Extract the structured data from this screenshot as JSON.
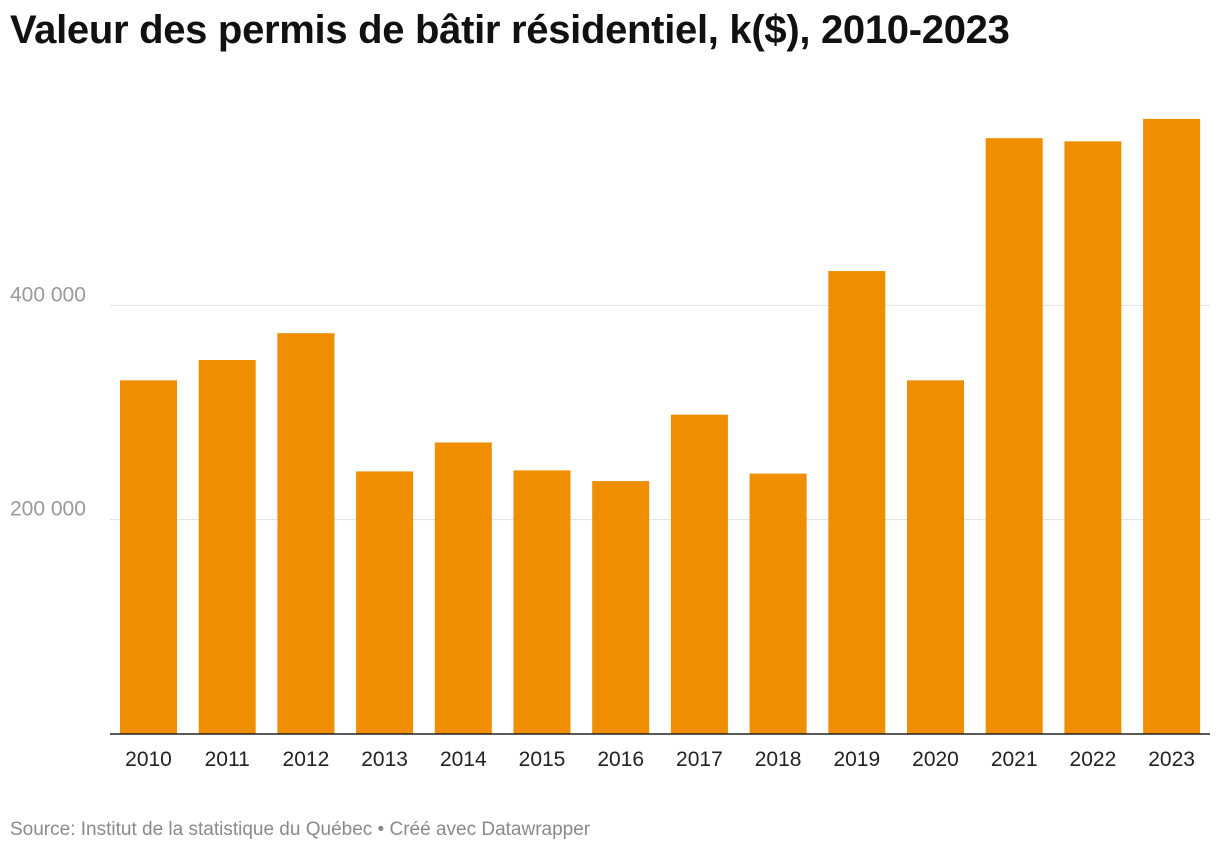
{
  "chart_data": {
    "type": "bar",
    "title": "Valeur des permis de bâtir résidentiel, k($), 2010-2023",
    "categories": [
      "2010",
      "2011",
      "2012",
      "2013",
      "2014",
      "2015",
      "2016",
      "2017",
      "2018",
      "2019",
      "2020",
      "2021",
      "2022",
      "2023"
    ],
    "values": [
      330000,
      349000,
      374000,
      245000,
      272000,
      246000,
      236000,
      298000,
      243000,
      432000,
      330000,
      556000,
      553000,
      574000
    ],
    "ylim": [
      0,
      600000
    ],
    "yticks": [
      200000,
      400000
    ],
    "ytick_labels": [
      "200 000",
      "400 000"
    ],
    "xlabel": "",
    "ylabel": "",
    "grid": true,
    "bar_color": "#ef8e00",
    "gridline_color": "#e0e0e0",
    "axis_color": "#222222"
  },
  "footer": {
    "source_text": "Source: Institut de la statistique du Québec • Créé avec Datawrapper"
  }
}
